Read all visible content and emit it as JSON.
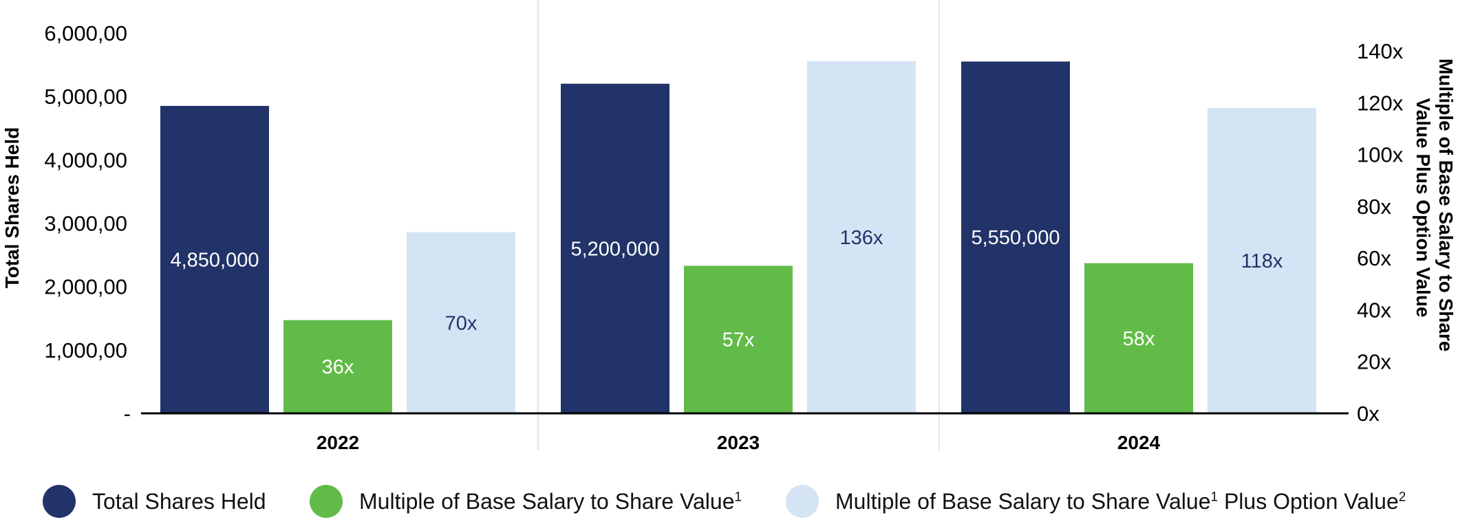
{
  "chart_data": {
    "type": "bar",
    "categories": [
      "2022",
      "2023",
      "2024"
    ],
    "left_axis": {
      "label": "Total Shares Held",
      "ylim": [
        0,
        6000000
      ],
      "ticks": [
        "-",
        "1,000,00",
        "2,000,00",
        "3,000,00",
        "4,000,00",
        "5,000,00",
        "6,000,00"
      ]
    },
    "right_axis": {
      "label": "Multiple of Base Salary to Share Value Plus Option Value",
      "label_lines": [
        "Multiple of Base Salary to Share",
        "Value Plus Option Value"
      ],
      "ylim": [
        0,
        148
      ],
      "ticks": [
        "0x",
        "20x",
        "40x",
        "60x",
        "80x",
        "100x",
        "120x",
        "140x"
      ]
    },
    "series": [
      {
        "name": "Total Shares Held",
        "axis": "left",
        "color": "#213368",
        "values": [
          4850000,
          5200000,
          5550000
        ],
        "labels": [
          "4,850,000",
          "5,200,000",
          "5,550,000"
        ],
        "label_color": "#ffffff"
      },
      {
        "name": "Multiple of Base Salary to Share Value",
        "legend_sup": "1",
        "axis": "right",
        "color": "#62bb48",
        "values": [
          36,
          57,
          58
        ],
        "labels": [
          "36x",
          "57x",
          "58x"
        ],
        "label_color": "#ffffff"
      },
      {
        "name": "Multiple of Base Salary to Share Value",
        "legend_sup": "1",
        "legend_suffix": " Plus Option Value",
        "legend_sup2": "2",
        "axis": "right",
        "color": "#d4e4f4",
        "values": [
          70,
          136,
          118
        ],
        "labels": [
          "70x",
          "136x",
          "118x"
        ],
        "label_color": "#213368"
      }
    ],
    "grid": false,
    "legend_position": "bottom"
  }
}
